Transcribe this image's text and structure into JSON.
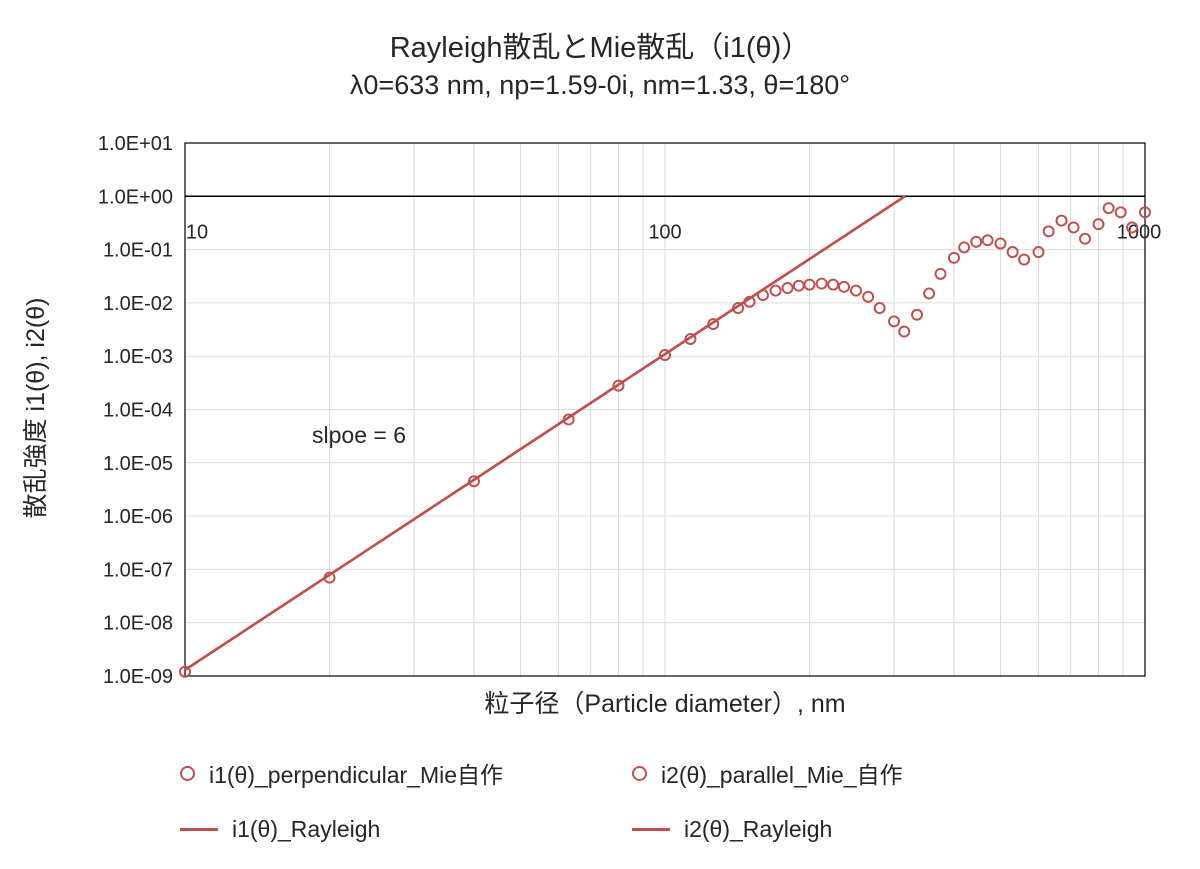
{
  "chart_data": {
    "type": "scatter",
    "title": "Rayleigh散乱とMie散乱（i1(θ)）",
    "subtitle": "λ0=633 nm, np=1.59-0i, nm=1.33, θ=180°",
    "xlabel": "粒子径（Particle diameter）, nm",
    "ylabel": "散乱強度 i1(θ), i2(θ)",
    "annotation": "slpoe = 6",
    "x_scale": "log",
    "y_scale": "log",
    "xlim": [
      10,
      1000
    ],
    "ylim": [
      1e-09,
      10
    ],
    "axis_cross_y": 1.0,
    "grid": true,
    "legend_position": "bottom",
    "colors": {
      "series": "#C0504D",
      "grid": "#D9D9D9",
      "axis": "#000000",
      "text": "#262626"
    },
    "x_ticks": [
      {
        "label": "10",
        "value": 10
      },
      {
        "label": "100",
        "value": 100
      },
      {
        "label": "1000",
        "value": 1000
      }
    ],
    "y_ticks": [
      {
        "label": "1.0E+01",
        "value": 10.0
      },
      {
        "label": "1.0E+00",
        "value": 1.0
      },
      {
        "label": "1.0E-01",
        "value": 0.1
      },
      {
        "label": "1.0E-02",
        "value": 0.01
      },
      {
        "label": "1.0E-03",
        "value": 0.001
      },
      {
        "label": "1.0E-04",
        "value": 0.0001
      },
      {
        "label": "1.0E-05",
        "value": 1e-05
      },
      {
        "label": "1.0E-06",
        "value": 1e-06
      },
      {
        "label": "1.0E-07",
        "value": 1e-07
      },
      {
        "label": "1.0E-08",
        "value": 1e-08
      },
      {
        "label": "1.0E-09",
        "value": 1e-09
      }
    ],
    "series": [
      {
        "name": "i1(θ)_perpendicular_Mie自作",
        "type": "scatter",
        "marker": "open-circle",
        "color": "#C0504D",
        "points": [
          [
            10,
            1.2e-09
          ],
          [
            20,
            7e-08
          ],
          [
            40,
            4.5e-06
          ],
          [
            63,
            6.5e-05
          ],
          [
            80,
            0.00028
          ],
          [
            100,
            0.00105
          ],
          [
            113,
            0.0021
          ],
          [
            126,
            0.004
          ],
          [
            142,
            0.008
          ],
          [
            150,
            0.0105
          ],
          [
            160,
            0.014
          ],
          [
            170,
            0.017
          ],
          [
            180,
            0.019
          ],
          [
            190,
            0.021
          ],
          [
            200,
            0.022
          ],
          [
            212,
            0.023
          ],
          [
            224,
            0.022
          ],
          [
            236,
            0.02
          ],
          [
            250,
            0.017
          ],
          [
            265,
            0.013
          ],
          [
            280,
            0.008
          ],
          [
            300,
            0.0045
          ],
          [
            315,
            0.0029
          ],
          [
            335,
            0.006
          ],
          [
            355,
            0.015
          ],
          [
            375,
            0.035
          ],
          [
            400,
            0.07
          ],
          [
            420,
            0.11
          ],
          [
            445,
            0.14
          ],
          [
            470,
            0.15
          ],
          [
            500,
            0.13
          ],
          [
            530,
            0.09
          ],
          [
            560,
            0.065
          ],
          [
            600,
            0.09
          ],
          [
            630,
            0.22
          ],
          [
            670,
            0.35
          ],
          [
            710,
            0.26
          ],
          [
            750,
            0.16
          ],
          [
            800,
            0.3
          ],
          [
            840,
            0.6
          ],
          [
            890,
            0.5
          ],
          [
            940,
            0.26
          ],
          [
            1000,
            0.5
          ]
        ]
      },
      {
        "name": "i2(θ)_parallel_Mie_自作",
        "type": "scatter",
        "marker": "open-circle",
        "color": "#C0504D",
        "points": [
          [
            10,
            1.2e-09
          ],
          [
            20,
            7e-08
          ],
          [
            40,
            4.5e-06
          ],
          [
            63,
            6.5e-05
          ],
          [
            80,
            0.00028
          ],
          [
            100,
            0.00105
          ],
          [
            113,
            0.0021
          ],
          [
            126,
            0.004
          ],
          [
            142,
            0.008
          ],
          [
            150,
            0.0105
          ],
          [
            160,
            0.014
          ],
          [
            170,
            0.017
          ],
          [
            180,
            0.019
          ],
          [
            190,
            0.021
          ],
          [
            200,
            0.022
          ],
          [
            212,
            0.023
          ],
          [
            224,
            0.022
          ],
          [
            236,
            0.02
          ],
          [
            250,
            0.017
          ],
          [
            265,
            0.013
          ],
          [
            280,
            0.008
          ],
          [
            300,
            0.0045
          ],
          [
            315,
            0.0029
          ],
          [
            335,
            0.006
          ],
          [
            355,
            0.015
          ],
          [
            375,
            0.035
          ],
          [
            400,
            0.07
          ],
          [
            420,
            0.11
          ],
          [
            445,
            0.14
          ],
          [
            470,
            0.15
          ],
          [
            500,
            0.13
          ],
          [
            530,
            0.09
          ],
          [
            560,
            0.065
          ],
          [
            600,
            0.09
          ],
          [
            630,
            0.22
          ],
          [
            670,
            0.35
          ],
          [
            710,
            0.26
          ],
          [
            750,
            0.16
          ],
          [
            800,
            0.3
          ],
          [
            840,
            0.6
          ],
          [
            890,
            0.5
          ],
          [
            940,
            0.26
          ],
          [
            1000,
            0.5
          ]
        ]
      },
      {
        "name": "i1(θ)_Rayleigh",
        "type": "line",
        "color": "#C0504D",
        "points": [
          [
            10,
            1.3e-09
          ],
          [
            316,
            1.0
          ]
        ]
      },
      {
        "name": "i2(θ)_Rayleigh",
        "type": "line",
        "color": "#C0504D",
        "points": [
          [
            10,
            1.3e-09
          ],
          [
            316,
            1.0
          ]
        ]
      }
    ]
  }
}
